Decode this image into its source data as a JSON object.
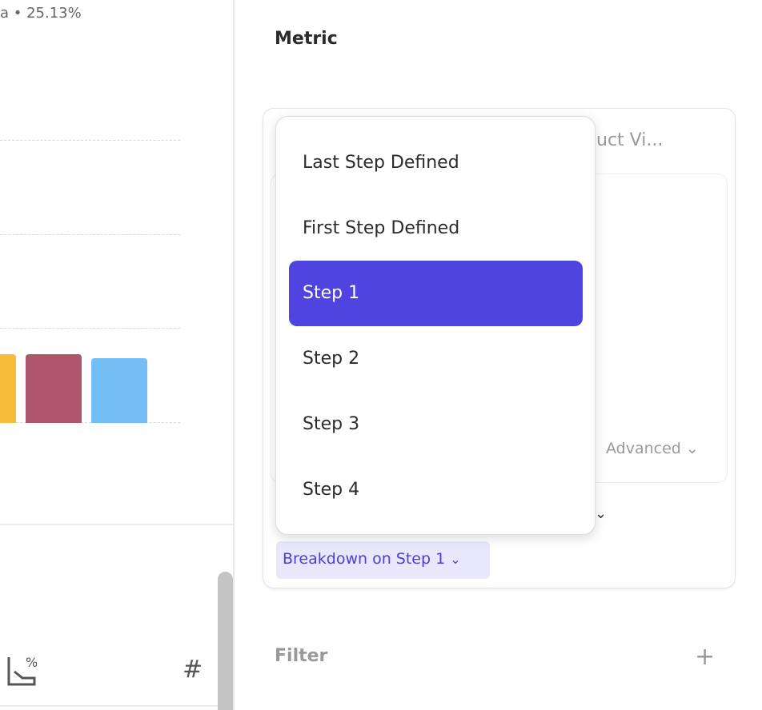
{
  "chart": {
    "stat_text": "a • 25.13%",
    "bars": [
      {
        "color": "#f7bd3a",
        "value": 0.73
      },
      {
        "color": "#b0566c",
        "value": 0.73
      },
      {
        "color": "#74bdf5",
        "value": 0.69
      }
    ]
  },
  "left_toolbar": {
    "icons": [
      "chart-percent-icon",
      "hash-icon"
    ],
    "hash": "#"
  },
  "panel": {
    "metric_title": "Metric",
    "behind_text": "uct Vi...",
    "advanced_label": "Advanced",
    "breakdown_label": "Breakdown on Step 1",
    "filter_label": "Filter",
    "add_symbol": "+"
  },
  "dropdown": {
    "items": [
      {
        "label": "Last Step Defined"
      },
      {
        "label": "First Step Defined"
      },
      {
        "label": "Step 1",
        "selected": true
      },
      {
        "label": "Step 2"
      },
      {
        "label": "Step 3"
      },
      {
        "label": "Step 4"
      }
    ],
    "selected_color": "#4f44e0"
  }
}
